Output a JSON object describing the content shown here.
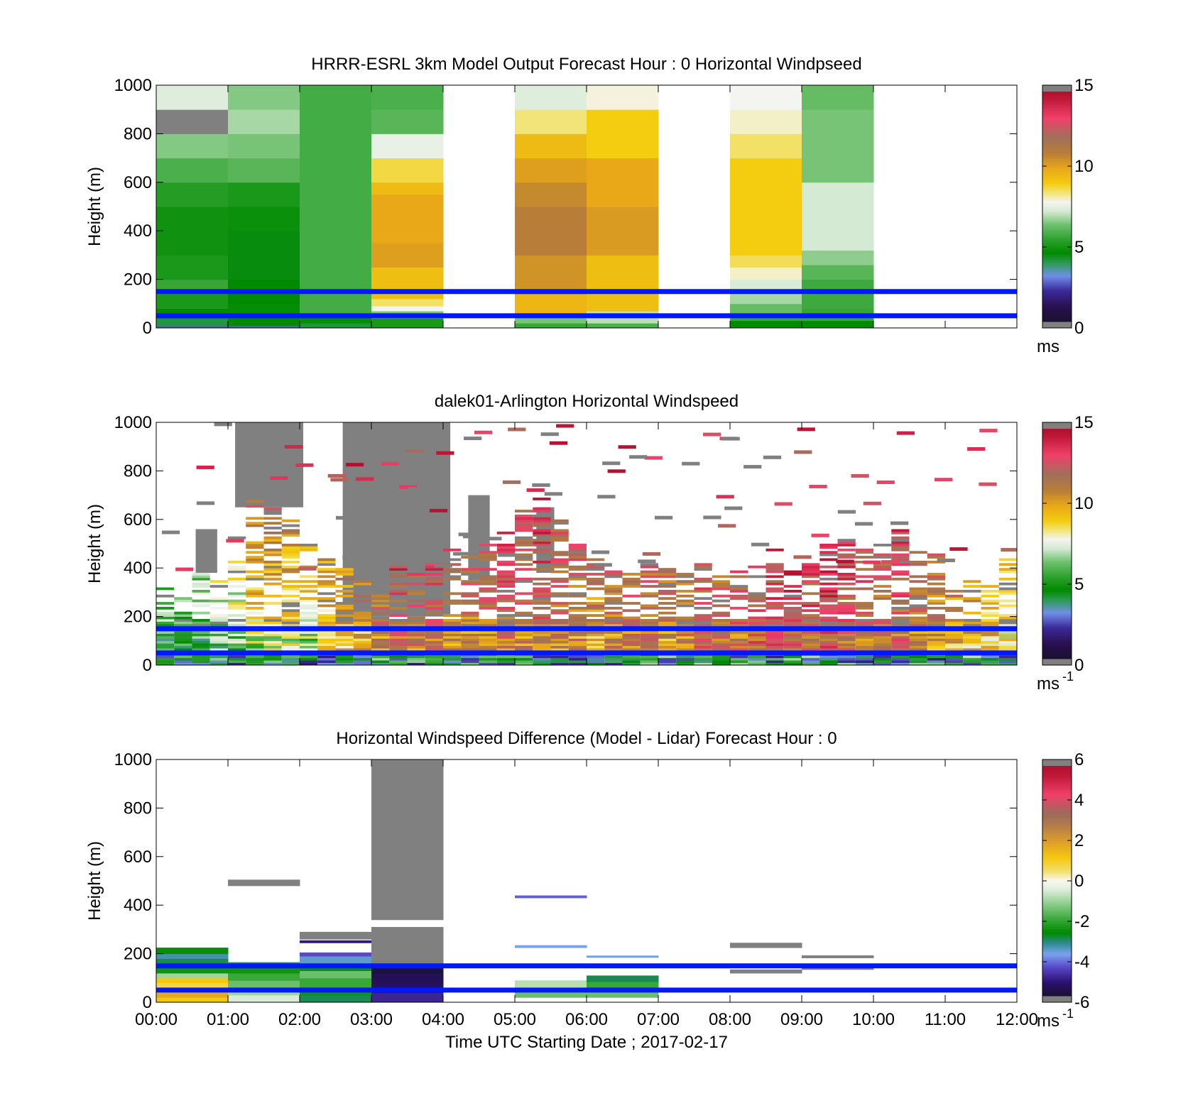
{
  "chart_data": [
    {
      "type": "heatmap",
      "title": "HRRR-ESRL 3km Model Output   Forecast Hour : 0 Horizontal Windpseed",
      "ylabel": "Height (m)",
      "xlabel": "",
      "yticks": [
        "0",
        "200",
        "400",
        "600",
        "800",
        "1000"
      ],
      "ylim": [
        0,
        1000
      ],
      "xlim_hours": [
        0,
        12
      ],
      "colorbar": {
        "ticks": [
          "0",
          "5",
          "10",
          "15"
        ],
        "range": [
          0,
          15
        ],
        "unit_base": "ms",
        "unit_exp": ""
      },
      "reference_lines_m": [
        150,
        50
      ],
      "columns": [
        {
          "hour": 0,
          "cells": [
            [
              0,
              10,
              2.5
            ],
            [
              10,
              40,
              4.0
            ],
            [
              40,
              80,
              4.5
            ],
            [
              80,
              140,
              5.0
            ],
            [
              140,
              200,
              5.5
            ],
            [
              200,
              300,
              5.0
            ],
            [
              300,
              400,
              4.8
            ],
            [
              400,
              500,
              4.8
            ],
            [
              500,
              600,
              5.2
            ],
            [
              600,
              700,
              5.8
            ],
            [
              700,
              800,
              6.5
            ],
            [
              800,
              900,
              15.2
            ],
            [
              900,
              1000,
              7.4
            ]
          ]
        },
        {
          "hour": 1,
          "cells": [
            [
              0,
              10,
              2.5
            ],
            [
              10,
              40,
              4.5
            ],
            [
              40,
              100,
              4.6
            ],
            [
              100,
              200,
              4.5
            ],
            [
              200,
              400,
              4.4
            ],
            [
              400,
              500,
              4.7
            ],
            [
              500,
              600,
              5.0
            ],
            [
              600,
              700,
              6.0
            ],
            [
              700,
              800,
              6.4
            ],
            [
              800,
              900,
              6.8
            ],
            [
              900,
              1000,
              6.5
            ]
          ]
        },
        {
          "hour": 2,
          "cells": [
            [
              0,
              20,
              4.0
            ],
            [
              20,
              60,
              4.6
            ],
            [
              60,
              1000,
              5.7
            ]
          ]
        },
        {
          "hour": 3,
          "cells": [
            [
              0,
              40,
              5.0
            ],
            [
              40,
              70,
              6.4
            ],
            [
              70,
              90,
              7.8
            ],
            [
              90,
              120,
              8.5
            ],
            [
              120,
              250,
              9.4
            ],
            [
              250,
              350,
              10.2
            ],
            [
              350,
              550,
              10.0
            ],
            [
              550,
              600,
              9.5
            ],
            [
              600,
              700,
              8.7
            ],
            [
              700,
              800,
              7.6
            ],
            [
              800,
              900,
              6.0
            ],
            [
              900,
              1000,
              5.8
            ]
          ]
        },
        {
          "hour": 5,
          "cells": [
            [
              0,
              20,
              5.5
            ],
            [
              20,
              60,
              6.4
            ],
            [
              60,
              140,
              9.6
            ],
            [
              140,
              300,
              10.5
            ],
            [
              300,
              500,
              11.0
            ],
            [
              500,
              600,
              10.7
            ],
            [
              600,
              700,
              10.2
            ],
            [
              700,
              800,
              9.5
            ],
            [
              800,
              900,
              8.4
            ],
            [
              900,
              1000,
              7.4
            ]
          ]
        },
        {
          "hour": 6,
          "cells": [
            [
              0,
              20,
              5.8
            ],
            [
              20,
              70,
              7.0
            ],
            [
              70,
              300,
              9.4
            ],
            [
              300,
              500,
              10.3
            ],
            [
              500,
              700,
              10.0
            ],
            [
              700,
              900,
              9.0
            ],
            [
              900,
              1000,
              7.9
            ]
          ]
        },
        {
          "hour": 8,
          "cells": [
            [
              0,
              30,
              4.5
            ],
            [
              30,
              60,
              5.5
            ],
            [
              60,
              100,
              6.2
            ],
            [
              100,
              160,
              6.8
            ],
            [
              160,
              200,
              7.3
            ],
            [
              200,
              250,
              8.0
            ],
            [
              250,
              300,
              8.6
            ],
            [
              300,
              700,
              9.0
            ],
            [
              700,
              800,
              8.5
            ],
            [
              800,
              900,
              8.0
            ],
            [
              900,
              1000,
              7.8
            ]
          ]
        },
        {
          "hour": 9,
          "cells": [
            [
              0,
              30,
              4.5
            ],
            [
              30,
              80,
              5.5
            ],
            [
              80,
              200,
              5.6
            ],
            [
              200,
              260,
              6.0
            ],
            [
              260,
              320,
              6.6
            ],
            [
              320,
              600,
              7.2
            ],
            [
              600,
              900,
              6.4
            ],
            [
              900,
              1000,
              6.2
            ]
          ]
        }
      ]
    },
    {
      "type": "heatmap",
      "title": "dalek01-Arlington  Horizontal Windspeed",
      "ylabel": "Height (m)",
      "xlabel": "",
      "yticks": [
        "0",
        "200",
        "400",
        "600",
        "800",
        "1000"
      ],
      "ylim": [
        0,
        1000
      ],
      "xlim_hours": [
        0,
        12
      ],
      "colorbar": {
        "ticks": [
          "0",
          "5",
          "10",
          "15"
        ],
        "range": [
          0,
          15
        ],
        "unit_base": "ms",
        "unit_exp": "-1"
      },
      "reference_lines_m": [
        150,
        50
      ],
      "cell_width_hours": 0.25,
      "gray_blocks": [
        [
          1.1,
          2.05,
          650,
          1000
        ],
        [
          2.6,
          4.1,
          200,
          1000
        ],
        [
          0.55,
          0.85,
          380,
          560
        ],
        [
          4.35,
          4.65,
          350,
          700
        ],
        [
          5.3,
          5.55,
          380,
          650
        ]
      ],
      "profiles": [
        {
          "hour": 0.0,
          "top": 320,
          "base": 5.0,
          "slope": 5.0
        },
        {
          "hour": 0.25,
          "top": 300,
          "base": 4.5,
          "slope": 6.0
        },
        {
          "hour": 0.5,
          "top": 400,
          "base": 5.0,
          "slope": 5.0
        },
        {
          "hour": 0.75,
          "top": 350,
          "base": 5.5,
          "slope": 6.0
        },
        {
          "hour": 1.0,
          "top": 550,
          "base": 6.0,
          "slope": 6.0
        },
        {
          "hour": 1.25,
          "top": 700,
          "base": 7.0,
          "slope": 8.0
        },
        {
          "hour": 1.5,
          "top": 650,
          "base": 7.5,
          "slope": 6.0
        },
        {
          "hour": 1.75,
          "top": 600,
          "base": 7.5,
          "slope": 6.0
        },
        {
          "hour": 2.0,
          "top": 500,
          "base": 7.0,
          "slope": 6.0
        },
        {
          "hour": 2.25,
          "top": 450,
          "base": 8.0,
          "slope": 6.0
        },
        {
          "hour": 2.5,
          "top": 400,
          "base": 9.0,
          "slope": 5.0
        },
        {
          "hour": 2.75,
          "top": 350,
          "base": 10.0,
          "slope": 4.0
        },
        {
          "hour": 3.0,
          "top": 300,
          "base": 11.0,
          "slope": 4.0
        },
        {
          "hour": 3.25,
          "top": 420,
          "base": 11.5,
          "slope": 4.0
        },
        {
          "hour": 3.5,
          "top": 380,
          "base": 11.0,
          "slope": 4.0
        },
        {
          "hour": 3.75,
          "top": 420,
          "base": 11.5,
          "slope": 4.0
        },
        {
          "hour": 4.0,
          "top": 500,
          "base": 11.0,
          "slope": 4.0
        },
        {
          "hour": 4.25,
          "top": 450,
          "base": 10.5,
          "slope": 4.0
        },
        {
          "hour": 4.5,
          "top": 500,
          "base": 11.0,
          "slope": 4.0
        },
        {
          "hour": 4.75,
          "top": 550,
          "base": 11.5,
          "slope": 3.0
        },
        {
          "hour": 5.0,
          "top": 650,
          "base": 11.0,
          "slope": 3.0
        },
        {
          "hour": 5.25,
          "top": 700,
          "base": 11.5,
          "slope": 3.0
        },
        {
          "hour": 5.5,
          "top": 600,
          "base": 11.0,
          "slope": 3.0
        },
        {
          "hour": 5.75,
          "top": 500,
          "base": 10.5,
          "slope": 4.0
        },
        {
          "hour": 6.0,
          "top": 450,
          "base": 10.0,
          "slope": 4.0
        },
        {
          "hour": 6.25,
          "top": 400,
          "base": 10.5,
          "slope": 4.0
        },
        {
          "hour": 6.5,
          "top": 380,
          "base": 11.0,
          "slope": 3.0
        },
        {
          "hour": 6.75,
          "top": 420,
          "base": 11.0,
          "slope": 3.0
        },
        {
          "hour": 7.0,
          "top": 400,
          "base": 10.5,
          "slope": 3.0
        },
        {
          "hour": 7.25,
          "top": 380,
          "base": 11.0,
          "slope": 3.0
        },
        {
          "hour": 7.5,
          "top": 420,
          "base": 11.5,
          "slope": 3.0
        },
        {
          "hour": 7.75,
          "top": 380,
          "base": 11.0,
          "slope": 3.0
        },
        {
          "hour": 8.0,
          "top": 400,
          "base": 11.5,
          "slope": 3.0
        },
        {
          "hour": 8.25,
          "top": 420,
          "base": 12.0,
          "slope": 3.0
        },
        {
          "hour": 8.5,
          "top": 480,
          "base": 12.0,
          "slope": 3.0
        },
        {
          "hour": 8.75,
          "top": 420,
          "base": 12.5,
          "slope": 3.0
        },
        {
          "hour": 9.0,
          "top": 440,
          "base": 12.0,
          "slope": 3.0
        },
        {
          "hour": 9.25,
          "top": 500,
          "base": 12.5,
          "slope": 3.0
        },
        {
          "hour": 9.5,
          "top": 520,
          "base": 12.0,
          "slope": 3.0
        },
        {
          "hour": 9.75,
          "top": 480,
          "base": 11.5,
          "slope": 3.0
        },
        {
          "hour": 10.0,
          "top": 500,
          "base": 11.0,
          "slope": 3.0
        },
        {
          "hour": 10.25,
          "top": 560,
          "base": 11.5,
          "slope": 3.0
        },
        {
          "hour": 10.5,
          "top": 480,
          "base": 11.0,
          "slope": 3.0
        },
        {
          "hour": 10.75,
          "top": 460,
          "base": 10.5,
          "slope": 3.0
        },
        {
          "hour": 11.0,
          "top": 380,
          "base": 10.0,
          "slope": 3.0
        },
        {
          "hour": 11.25,
          "top": 350,
          "base": 9.5,
          "slope": 3.0
        },
        {
          "hour": 11.5,
          "top": 330,
          "base": 9.0,
          "slope": 3.0
        },
        {
          "hour": 11.75,
          "top": 450,
          "base": 8.5,
          "slope": 3.0
        }
      ]
    },
    {
      "type": "heatmap",
      "title": "Horizontal Windspeed Difference (Model - Lidar) Forecast Hour : 0",
      "ylabel": "Height (m)",
      "xlabel": "Time UTC  Starting Date ; 2017-02-17",
      "yticks": [
        "0",
        "200",
        "400",
        "600",
        "800",
        "1000"
      ],
      "ylim": [
        0,
        1000
      ],
      "xlim_hours": [
        0,
        12
      ],
      "xticks": [
        "00:00",
        "01:00",
        "02:00",
        "03:00",
        "04:00",
        "05:00",
        "06:00",
        "07:00",
        "08:00",
        "09:00",
        "10:00",
        "11:00",
        "12:00"
      ],
      "colorbar": {
        "ticks": [
          "-6",
          "-4",
          "-2",
          "0",
          "2",
          "4",
          "6"
        ],
        "range": [
          -6,
          6
        ],
        "unit_base": "ms",
        "unit_exp": "-1"
      },
      "reference_lines_m": [
        150,
        50
      ],
      "columns": [
        {
          "hour": 0,
          "cells": [
            [
              0,
              20,
              1.2
            ],
            [
              20,
              40,
              1.8
            ],
            [
              40,
              60,
              1.5
            ],
            [
              60,
              80,
              0.8
            ],
            [
              80,
              100,
              1.2
            ],
            [
              100,
              120,
              -1.0
            ],
            [
              120,
              140,
              -2.5
            ],
            [
              140,
              160,
              -2.8
            ],
            [
              160,
              180,
              -3.0
            ],
            [
              180,
              200,
              -3.4
            ],
            [
              200,
              225,
              -2.6
            ]
          ]
        },
        {
          "hour": 1,
          "cells": [
            [
              0,
              30,
              -0.5
            ],
            [
              30,
              60,
              -1.0
            ],
            [
              60,
              90,
              -1.5
            ],
            [
              90,
              120,
              -2.0
            ],
            [
              120,
              150,
              -2.5
            ],
            [
              150,
              165,
              -3.2
            ],
            [
              480,
              505,
              6.1
            ]
          ]
        },
        {
          "hour": 2,
          "cells": [
            [
              0,
              30,
              -3.0
            ],
            [
              30,
              60,
              -2.5
            ],
            [
              60,
              100,
              -2.0
            ],
            [
              100,
              130,
              -1.5
            ],
            [
              130,
              160,
              -2.8
            ],
            [
              160,
              190,
              -3.6
            ],
            [
              190,
              205,
              -4.5
            ],
            [
              245,
              255,
              -5.2
            ],
            [
              260,
              290,
              6.1
            ]
          ]
        },
        {
          "hour": 3,
          "cells": [
            [
              0,
              40,
              -5.0
            ],
            [
              40,
              80,
              -5.4
            ],
            [
              80,
              120,
              -5.6
            ],
            [
              120,
              150,
              -5.8
            ],
            [
              150,
              310,
              6.1
            ],
            [
              340,
              1000,
              6.1
            ]
          ]
        },
        {
          "hour": 5,
          "cells": [
            [
              20,
              50,
              -1.5
            ],
            [
              50,
              90,
              -0.8
            ],
            [
              225,
              235,
              -3.8
            ],
            [
              430,
              440,
              -4.3
            ]
          ]
        },
        {
          "hour": 6,
          "cells": [
            [
              20,
              60,
              -1.5
            ],
            [
              60,
              85,
              -2.0
            ],
            [
              85,
              110,
              -3.0
            ],
            [
              185,
              192,
              -3.7
            ]
          ]
        },
        {
          "hour": 8,
          "cells": [
            [
              120,
              135,
              6.1
            ],
            [
              225,
              245,
              6.1
            ]
          ]
        },
        {
          "hour": 9,
          "cells": [
            [
              135,
              145,
              6.1
            ],
            [
              183,
              193,
              6.1
            ]
          ]
        }
      ]
    }
  ]
}
